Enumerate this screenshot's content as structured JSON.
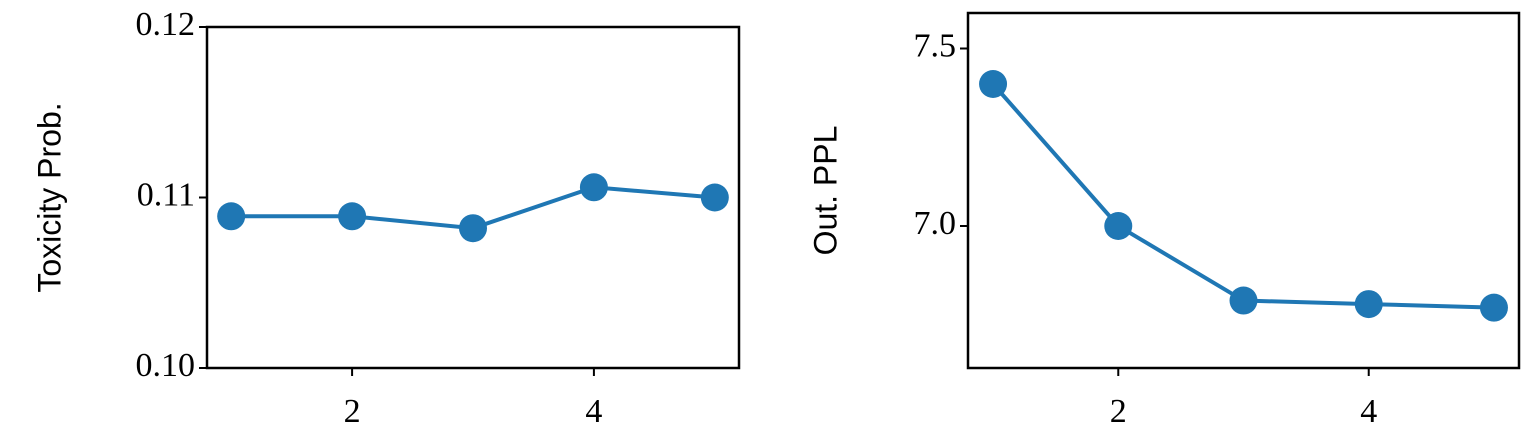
{
  "chart_data": [
    {
      "type": "line",
      "ylabel": "Toxicity Prob.",
      "x": [
        1,
        2,
        3,
        4,
        5
      ],
      "values": [
        0.1089,
        0.1089,
        0.1082,
        0.1106,
        0.11
      ],
      "color": "#1f77b4",
      "xlim": [
        0.8,
        5.2
      ],
      "ylim": [
        0.1,
        0.12
      ],
      "xticks": [
        2,
        4
      ],
      "yticks": [
        {
          "value": 0.1,
          "label": "0.10"
        },
        0.11,
        0.12
      ]
    },
    {
      "type": "line",
      "ylabel": "Out. PPL",
      "x": [
        1,
        2,
        3,
        4,
        5
      ],
      "values": [
        7.4,
        7.0,
        6.79,
        6.78,
        6.77
      ],
      "color": "#1f77b4",
      "xlim": [
        0.8,
        5.2
      ],
      "ylim": [
        6.6,
        7.6
      ],
      "xticks": [
        2,
        4
      ],
      "yticks": [
        {
          "value": 7,
          "label": "7.0"
        },
        7.5
      ]
    }
  ]
}
